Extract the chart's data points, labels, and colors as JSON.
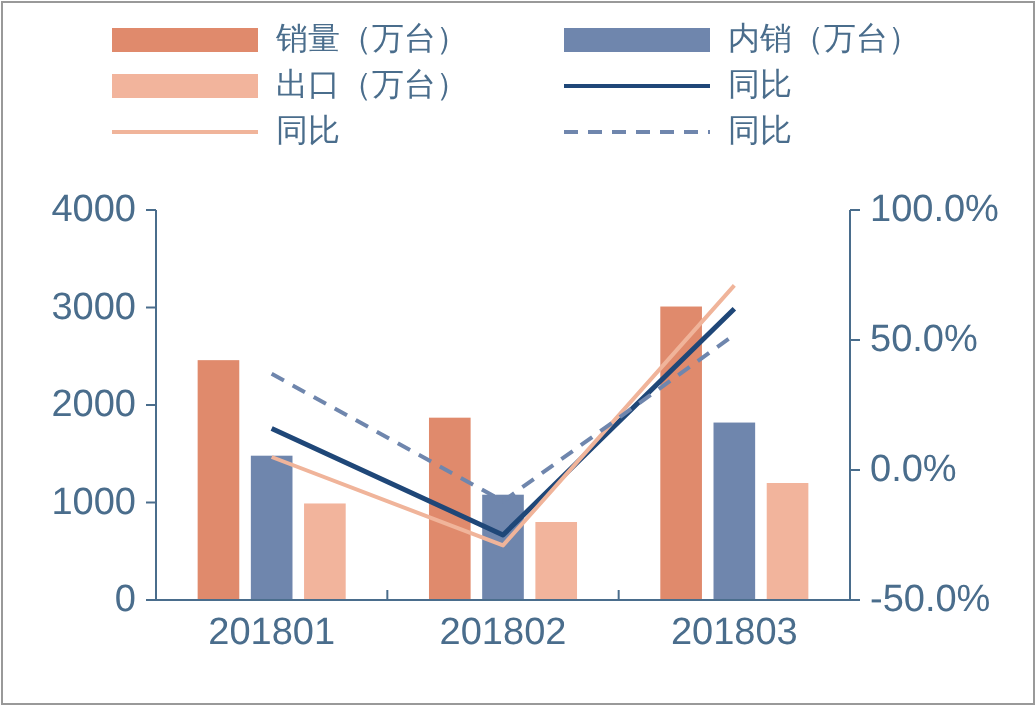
{
  "chart_data": {
    "type": "bar",
    "categories": [
      "201801",
      "201802",
      "201803"
    ],
    "series": [
      {
        "name": "销量（万台）",
        "color": "#e08a6c",
        "values": [
          2460,
          1870,
          3010
        ]
      },
      {
        "name": "内销（万台）",
        "color": "#6f86ad",
        "values": [
          1480,
          1080,
          1820
        ]
      },
      {
        "name": "出口（万台）",
        "color": "#f2b49c",
        "values": [
          990,
          800,
          1200
        ]
      },
      {
        "name": "同比",
        "type": "line",
        "axis": "y2",
        "color": "#1f4778",
        "line_style": "solid",
        "values": [
          16,
          -25,
          62
        ]
      },
      {
        "name": "同比",
        "type": "line",
        "axis": "y2",
        "color": "#f0b49a",
        "line_style": "solid",
        "values": [
          5,
          -29,
          71
        ]
      },
      {
        "name": "同比",
        "type": "line",
        "axis": "y2",
        "color": "#6f86ad",
        "line_style": "dashed",
        "values": [
          37,
          -12,
          52
        ]
      }
    ],
    "ylim": [
      0,
      4000
    ],
    "yticks": [
      0,
      1000,
      2000,
      3000,
      4000
    ],
    "y2lim": [
      -50,
      100
    ],
    "y2ticks": [
      {
        "value": -50,
        "label": "-50.0%"
      },
      {
        "value": 0,
        "label": "0.0%"
      },
      {
        "value": 50,
        "label": "50.0%"
      },
      {
        "value": 100,
        "label": "100.0%"
      }
    ],
    "grid": false,
    "legend": "top"
  }
}
